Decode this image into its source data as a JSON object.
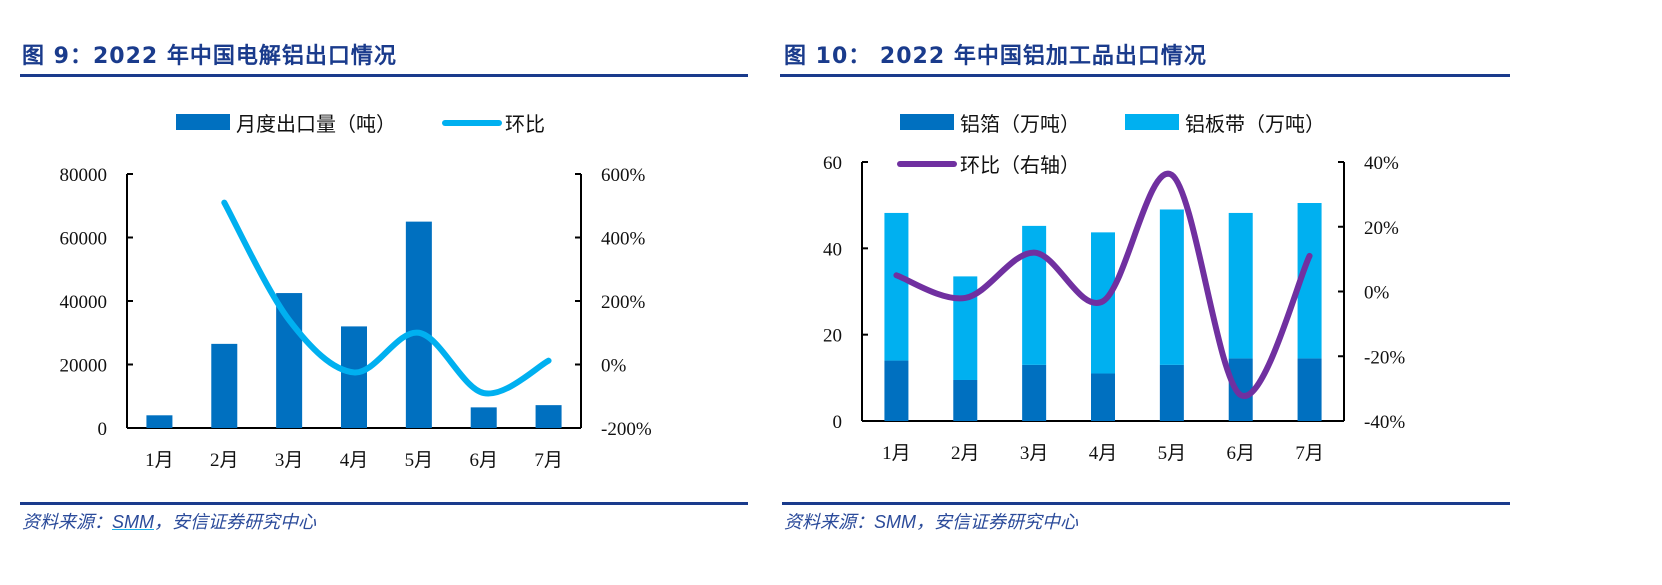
{
  "chart_data": [
    {
      "type": "bar",
      "title": "图 9：2022 年中国电解铝出口情况",
      "categories": [
        "1月",
        "2月",
        "3月",
        "4月",
        "5月",
        "6月",
        "7月"
      ],
      "series": [
        {
          "name": "月度出口量（吨）",
          "type": "bar",
          "axis": "left",
          "color": "#0070c0",
          "values": [
            4000,
            26500,
            42500,
            32000,
            65000,
            6500,
            7200
          ]
        },
        {
          "name": "环比",
          "type": "line",
          "axis": "right",
          "color": "#00b0f0",
          "values": [
            null,
            510,
            140,
            -25,
            100,
            -90,
            12
          ]
        }
      ],
      "yleft": {
        "min": 0,
        "max": 80000,
        "ticks": [
          "0",
          "20000",
          "40000",
          "60000",
          "80000"
        ],
        "tick_values": [
          0,
          20000,
          40000,
          60000,
          80000
        ]
      },
      "yright": {
        "min": -200,
        "max": 600,
        "ticks": [
          "-200%",
          "0%",
          "200%",
          "400%",
          "600%"
        ],
        "tick_values": [
          -200,
          0,
          200,
          400,
          600
        ]
      },
      "legend": "top-center",
      "grid": false,
      "source": {
        "prefix": "资料来源：",
        "link": "SMM",
        "suffix": "，安信证券研究中心"
      }
    },
    {
      "type": "bar",
      "stacked": true,
      "title": "图 10：  2022 年中国铝加工品出口情况",
      "categories": [
        "1月",
        "2月",
        "3月",
        "4月",
        "5月",
        "6月",
        "7月"
      ],
      "series": [
        {
          "name": "铝箔（万吨）",
          "type": "bar",
          "axis": "left",
          "color": "#0070c0",
          "values": [
            14,
            9.5,
            13,
            11,
            13,
            14.5,
            14.5
          ]
        },
        {
          "name": "铝板带（万吨）",
          "type": "bar",
          "axis": "left",
          "color": "#00b0f0",
          "values": [
            34.2,
            24,
            32.2,
            32.7,
            36,
            33.7,
            36
          ]
        },
        {
          "name": "环比（右轴）",
          "type": "line",
          "axis": "right",
          "color": "#7030a0",
          "values": [
            5,
            -2,
            12,
            -3,
            36,
            -32,
            11
          ]
        }
      ],
      "yleft": {
        "min": 0,
        "max": 60,
        "ticks": [
          "0",
          "20",
          "40",
          "60"
        ],
        "tick_values": [
          0,
          20,
          40,
          60
        ]
      },
      "yright": {
        "min": -40,
        "max": 40,
        "ticks": [
          "-40%",
          "-20%",
          "0%",
          "20%",
          "40%"
        ],
        "tick_values": [
          -40,
          -20,
          0,
          20,
          40
        ]
      },
      "legend": "top",
      "grid": false,
      "source": {
        "prefix": "资料来源：",
        "link": "SMM",
        "suffix": "，安信证券研究中心"
      }
    }
  ]
}
